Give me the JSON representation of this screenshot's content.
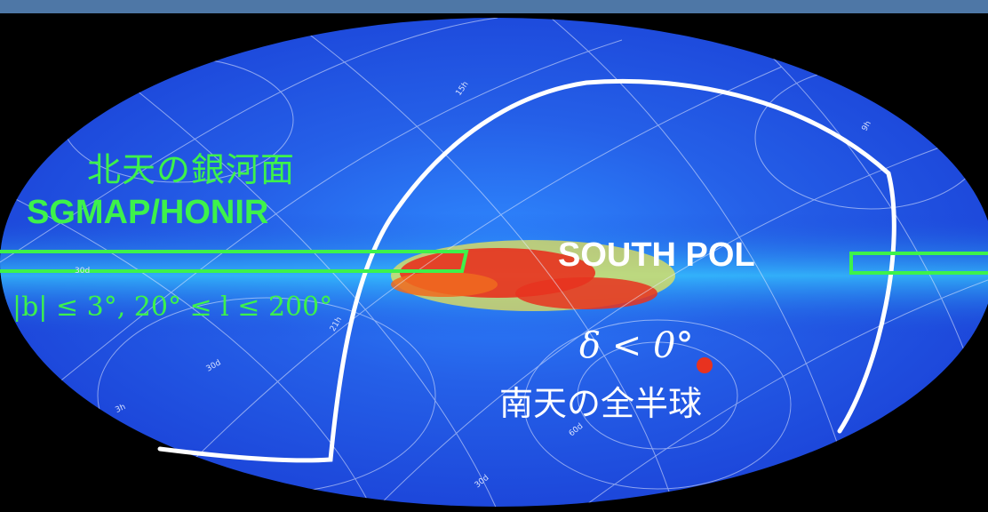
{
  "colors": {
    "header_bar": "#4e77a6",
    "background": "#000000",
    "sky_low": "#1a3fd6",
    "sky_mid": "#2f8bff",
    "plane_hot": "#e8321f",
    "plane_warm": "#f6e94a",
    "north_region": "#3df24b",
    "south_region": "#ffffff",
    "grid": "#e6ecff"
  },
  "labels": {
    "north_title": "北天の銀河面",
    "north_survey": "SGMAP/HONIR",
    "north_range": "|b| ≤ 3°, 20° ≤ l ≤ 200°",
    "south_survey": "SOUTH POL",
    "south_range": "δ < 0°",
    "south_title": "南天の全半球"
  },
  "grid_labels": {
    "ra_15h": "15h",
    "ra_9h": "9h",
    "ra_21h": "21h",
    "ra_3h": "3h",
    "dec_30d_left": "30d",
    "dec_30d_mid": "30d",
    "dec_60d": "60d",
    "dec_30d_bottom": "30d"
  }
}
